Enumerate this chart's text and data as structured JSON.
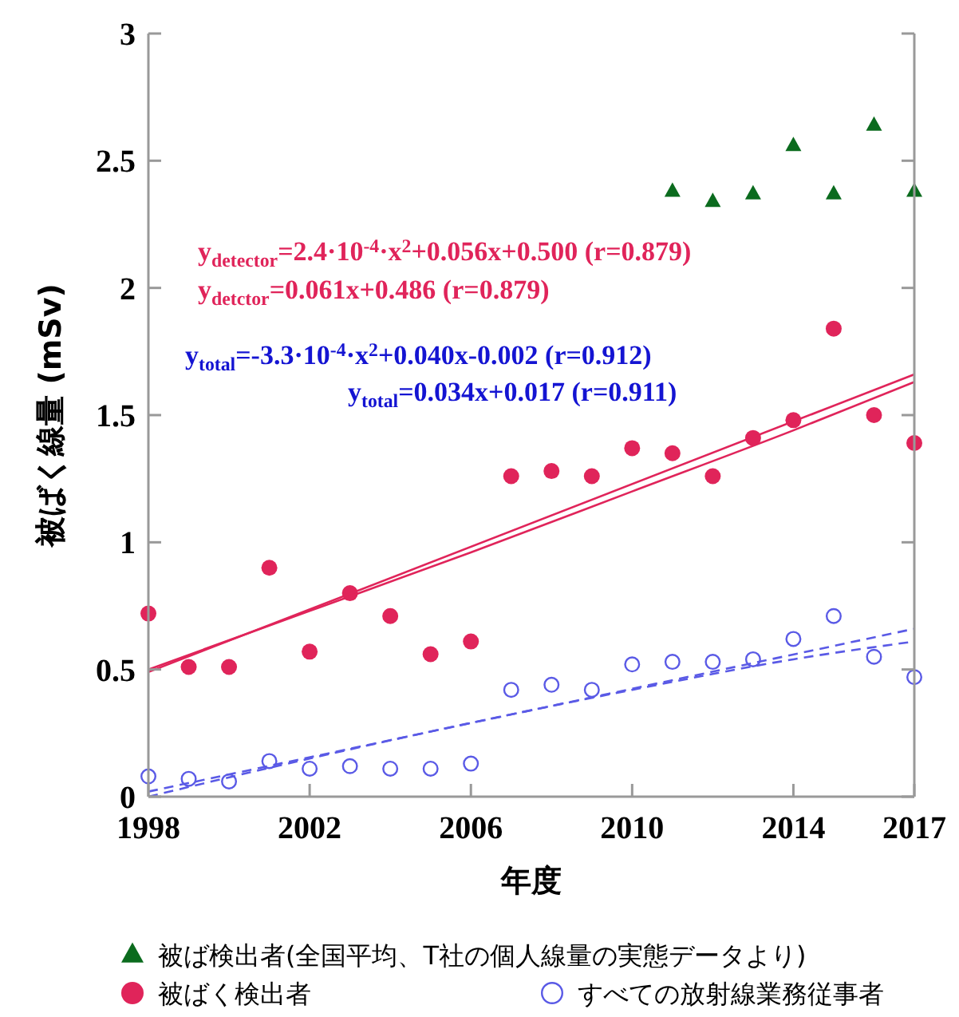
{
  "chart_data": {
    "type": "scatter",
    "xlabel": "年度",
    "ylabel": "被ばく線量 (mSv)",
    "xlim": [
      1998,
      2017
    ],
    "ylim": [
      0,
      3
    ],
    "xticks": [
      1998,
      2002,
      2006,
      2010,
      2014,
      2017
    ],
    "yticks": [
      0,
      0.5,
      1,
      1.5,
      2,
      2.5,
      3
    ],
    "grid": false,
    "legend": "bottom",
    "series": [
      {
        "name": "被ば検出者(全国平均、T社の個人線量の実態データより)",
        "marker": "triangle",
        "color": "#0b6b1e",
        "x": [
          2011,
          2012,
          2013,
          2014,
          2015,
          2016,
          2017
        ],
        "values": [
          2.38,
          2.34,
          2.37,
          2.56,
          2.37,
          2.64,
          2.38
        ]
      },
      {
        "name": "被ばく検出者",
        "marker": "circle",
        "color": "#e0245a",
        "x": [
          1998,
          1999,
          2000,
          2001,
          2002,
          2003,
          2004,
          2005,
          2006,
          2007,
          2008,
          2009,
          2010,
          2011,
          2012,
          2013,
          2014,
          2015,
          2016,
          2017
        ],
        "values": [
          0.72,
          0.51,
          0.51,
          0.9,
          0.57,
          0.8,
          0.71,
          0.56,
          0.61,
          1.26,
          1.28,
          1.26,
          1.37,
          1.35,
          1.26,
          1.41,
          1.48,
          1.84,
          1.5,
          1.39
        ]
      },
      {
        "name": "すべての放射線業務従事者",
        "marker": "circle",
        "color": "#5a5ae6",
        "x": [
          1998,
          1999,
          2000,
          2001,
          2002,
          2003,
          2004,
          2005,
          2006,
          2007,
          2008,
          2009,
          2010,
          2011,
          2012,
          2013,
          2014,
          2015,
          2016,
          2017
        ],
        "values": [
          0.08,
          0.07,
          0.06,
          0.14,
          0.11,
          0.12,
          0.11,
          0.11,
          0.13,
          0.42,
          0.44,
          0.42,
          0.52,
          0.53,
          0.53,
          0.54,
          0.62,
          0.71,
          0.55,
          0.47
        ]
      },
      {
        "type": "line",
        "line_style": "solid",
        "color": "#e0245a",
        "x": [
          1998,
          2002,
          2006,
          2010,
          2014,
          2017
        ],
        "values": [
          0.5,
          0.73,
          0.96,
          1.2,
          1.44,
          1.63
        ]
      },
      {
        "type": "line",
        "line_style": "solid",
        "color": "#e0245a",
        "x": [
          1998,
          2017
        ],
        "values": [
          0.49,
          1.66
        ]
      },
      {
        "type": "line",
        "line_style": "dashed",
        "color": "#5a5ae6",
        "x": [
          1998,
          2002,
          2006,
          2010,
          2014,
          2017
        ],
        "values": [
          0,
          0.15,
          0.29,
          0.42,
          0.54,
          0.61
        ]
      },
      {
        "type": "line",
        "line_style": "dashed",
        "color": "#5a5ae6",
        "x": [
          1998,
          2017
        ],
        "values": [
          0.02,
          0.66
        ]
      }
    ],
    "annotations": [
      "y$_{detector}$=2.4·10$^{-4}$·x$^{2}$+0.056x+0.500 (r=0.879)",
      "y$_{detctor}$=0.061x+0.486 (r=0.879)",
      "y$_{total}$=-3.3·10$^{-4}$·x$^{2}$+0.040x-0.002 (r=0.912)",
      "y$_{total}$=0.034x+0.017 (r=0.911)"
    ]
  }
}
